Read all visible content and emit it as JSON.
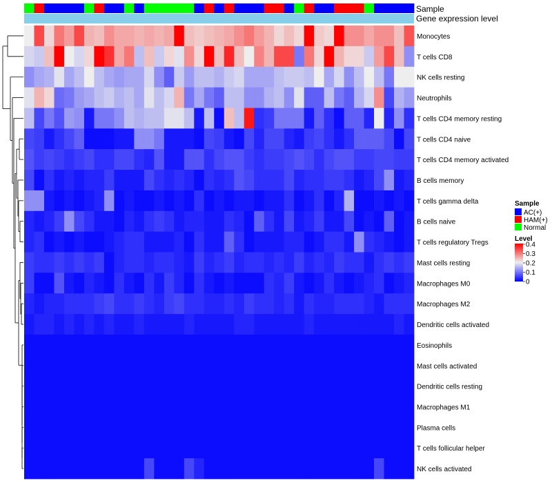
{
  "chart_data": {
    "type": "heatmap",
    "title": "",
    "annotation_tracks": [
      {
        "name": "Sample",
        "label": "Sample"
      },
      {
        "name": "Gene expression level",
        "label": "Gene expression level"
      }
    ],
    "sample_groups": [
      "Normal",
      "HAM(+)",
      "AC(+)",
      "AC(+)",
      "AC(+)",
      "AC(+)",
      "Normal",
      "HAM(+)",
      "AC(+)",
      "AC(+)",
      "Normal",
      "AC(+)",
      "Normal",
      "Normal",
      "Normal",
      "Normal",
      "Normal",
      "AC(+)",
      "HAM(+)",
      "AC(+)",
      "HAM(+)",
      "AC(+)",
      "AC(+)",
      "AC(+)",
      "HAM(+)",
      "HAM(+)",
      "AC(+)",
      "Normal",
      "HAM(+)",
      "AC(+)",
      "AC(+)",
      "HAM(+)",
      "HAM(+)",
      "HAM(+)",
      "Normal",
      "AC(+)",
      "AC(+)",
      "AC(+)",
      "AC(+)"
    ],
    "gene_expression_level": "single continuous band (light blue)",
    "rows": [
      "Monocytes",
      "T cells CD8",
      "NK cells resting",
      "Neutrophils",
      "T cells CD4 memory resting",
      "T cells CD4 naive",
      "T cells CD4 memory activated",
      "B cells memory",
      "T cells gamma delta",
      "B cells naive",
      "T cells regulatory  Tregs",
      "Mast cells resting",
      "Macrophages M0",
      "Macrophages M2",
      "Dendritic cells activated",
      "Eosinophils",
      "Mast cells activated",
      "Dendritic cells resting",
      "Macrophages M1",
      "Plasma cells",
      "T cells follicular helper",
      "NK cells activated"
    ],
    "values": [
      [
        0.2,
        0.34,
        0.22,
        0.3,
        0.27,
        0.34,
        0.25,
        0.24,
        0.28,
        0.26,
        0.26,
        0.25,
        0.26,
        0.25,
        0.26,
        0.4,
        0.24,
        0.23,
        0.24,
        0.25,
        0.26,
        0.28,
        0.3,
        0.27,
        0.25,
        0.22,
        0.24,
        0.22,
        0.4,
        0.23,
        0.22,
        0.4,
        0.28,
        0.28,
        0.26,
        0.28,
        0.28,
        0.24,
        0.33
      ],
      [
        0.18,
        0.17,
        0.24,
        0.4,
        0.2,
        0.18,
        0.22,
        0.4,
        0.36,
        0.26,
        0.3,
        0.16,
        0.24,
        0.17,
        0.22,
        0.19,
        0.28,
        0.22,
        0.4,
        0.24,
        0.37,
        0.24,
        0.2,
        0.29,
        0.25,
        0.34,
        0.34,
        0.1,
        0.3,
        0.22,
        0.4,
        0.25,
        0.22,
        0.22,
        0.17,
        0.27,
        0.34,
        0.24,
        0.12
      ],
      [
        0.12,
        0.14,
        0.15,
        0.19,
        0.14,
        0.16,
        0.2,
        0.16,
        0.14,
        0.13,
        0.14,
        0.14,
        0.18,
        0.12,
        0.08,
        0.17,
        0.13,
        0.16,
        0.16,
        0.15,
        0.17,
        0.18,
        0.14,
        0.14,
        0.14,
        0.16,
        0.17,
        0.17,
        0.16,
        0.2,
        0.14,
        0.18,
        0.12,
        0.16,
        0.2,
        0.16,
        0.1,
        0.2,
        0.2
      ],
      [
        0.19,
        0.25,
        0.22,
        0.09,
        0.1,
        0.13,
        0.14,
        0.16,
        0.17,
        0.15,
        0.16,
        0.14,
        0.19,
        0.16,
        0.18,
        0.25,
        0.1,
        0.14,
        0.1,
        0.08,
        0.16,
        0.16,
        0.12,
        0.12,
        0.15,
        0.16,
        0.12,
        0.19,
        0.08,
        0.08,
        0.16,
        0.1,
        0.08,
        0.15,
        0.18,
        0.28,
        0.06,
        0.15,
        0.13
      ],
      [
        0.16,
        0.06,
        0.1,
        0.07,
        0.13,
        0.12,
        0.02,
        0.1,
        0.1,
        0.12,
        0.16,
        0.15,
        0.16,
        0.16,
        0.19,
        0.19,
        0.16,
        0.02,
        0.16,
        0.01,
        0.24,
        0.16,
        0.38,
        0.04,
        0.05,
        0.1,
        0.1,
        0.1,
        0.02,
        0.08,
        0.04,
        0.01,
        0.08,
        0.08,
        0.03,
        0.2,
        0.03,
        0.12,
        0.04
      ],
      [
        0.06,
        0.05,
        0.02,
        0.04,
        0.06,
        0.08,
        0.01,
        0.01,
        0.01,
        0.02,
        0.02,
        0.12,
        0.12,
        0.1,
        0.02,
        0.02,
        0.02,
        0.01,
        0.06,
        0.05,
        0.02,
        0.01,
        0.06,
        0.03,
        0.06,
        0.06,
        0.03,
        0.02,
        0.05,
        0.06,
        0.04,
        0.02,
        0.04,
        0.08,
        0.08,
        0.08,
        0.06,
        0.01,
        0.06
      ],
      [
        0.07,
        0.05,
        0.06,
        0.05,
        0.04,
        0.05,
        0.06,
        0.04,
        0.04,
        0.06,
        0.06,
        0.04,
        0.03,
        0.07,
        0.02,
        0.02,
        0.07,
        0.07,
        0.04,
        0.06,
        0.07,
        0.07,
        0.05,
        0.04,
        0.05,
        0.05,
        0.06,
        0.07,
        0.06,
        0.04,
        0.06,
        0.07,
        0.07,
        0.05,
        0.05,
        0.06,
        0.06,
        0.05,
        0.05
      ],
      [
        0.06,
        0.01,
        0.04,
        0.02,
        0.03,
        0.02,
        0.03,
        0.03,
        0.05,
        0.02,
        0.02,
        0.02,
        0.06,
        0.04,
        0.03,
        0.04,
        0.03,
        0.01,
        0.04,
        0.03,
        0.04,
        0.07,
        0.06,
        0.04,
        0.04,
        0.04,
        0.06,
        0.03,
        0.04,
        0.04,
        0.05,
        0.05,
        0.04,
        0.02,
        0.03,
        0.06,
        0.12,
        0.02,
        0.03
      ],
      [
        0.12,
        0.12,
        0.02,
        0.01,
        0.02,
        0.01,
        0.02,
        0.03,
        0.12,
        0.01,
        0.02,
        0.01,
        0.01,
        0.02,
        0.01,
        0.02,
        0.01,
        0.04,
        0.01,
        0.02,
        0.01,
        0.02,
        0.02,
        0.01,
        0.02,
        0.02,
        0.04,
        0.01,
        0.02,
        0.04,
        0.01,
        0.03,
        0.15,
        0.01,
        0.01,
        0.02,
        0.01,
        0.02,
        0.01
      ],
      [
        0.03,
        0.02,
        0.03,
        0.05,
        0.12,
        0.06,
        0.04,
        0.02,
        0.02,
        0.01,
        0.03,
        0.02,
        0.04,
        0.05,
        0.04,
        0.02,
        0.03,
        0.03,
        0.02,
        0.02,
        0.04,
        0.03,
        0.01,
        0.08,
        0.04,
        0.02,
        0.06,
        0.02,
        0.03,
        0.05,
        0.02,
        0.02,
        0.06,
        0.01,
        0.02,
        0.01,
        0.08,
        0.01,
        0.02
      ],
      [
        0.03,
        0.04,
        0.01,
        0.02,
        0.01,
        0.02,
        0.01,
        0.01,
        0.02,
        0.03,
        0.04,
        0.04,
        0.02,
        0.02,
        0.02,
        0.03,
        0.01,
        0.04,
        0.02,
        0.02,
        0.08,
        0.04,
        0.01,
        0.02,
        0.02,
        0.02,
        0.03,
        0.03,
        0.01,
        0.02,
        0.04,
        0.04,
        0.02,
        0.12,
        0.04,
        0.03,
        0.02,
        0.01,
        0.02
      ],
      [
        0.05,
        0.04,
        0.04,
        0.05,
        0.04,
        0.05,
        0.04,
        0.05,
        0.01,
        0.03,
        0.04,
        0.04,
        0.03,
        0.04,
        0.04,
        0.03,
        0.02,
        0.05,
        0.03,
        0.04,
        0.05,
        0.03,
        0.04,
        0.04,
        0.03,
        0.04,
        0.03,
        0.05,
        0.03,
        0.04,
        0.03,
        0.05,
        0.04,
        0.04,
        0.02,
        0.04,
        0.05,
        0.04,
        0.05
      ],
      [
        0.05,
        0.01,
        0.01,
        0.07,
        0.02,
        0.01,
        0.03,
        0.02,
        0.01,
        0.04,
        0.02,
        0.01,
        0.04,
        0.02,
        0.05,
        0.03,
        0.01,
        0.04,
        0.02,
        0.01,
        0.02,
        0.01,
        0.01,
        0.01,
        0.04,
        0.03,
        0.05,
        0.02,
        0.01,
        0.02,
        0.04,
        0.02,
        0.01,
        0.02,
        0.03,
        0.04,
        0.01,
        0.02,
        0.03
      ],
      [
        0.03,
        0.02,
        0.03,
        0.03,
        0.04,
        0.04,
        0.04,
        0.05,
        0.06,
        0.04,
        0.04,
        0.05,
        0.04,
        0.03,
        0.05,
        0.06,
        0.04,
        0.04,
        0.03,
        0.03,
        0.04,
        0.03,
        0.05,
        0.04,
        0.04,
        0.03,
        0.04,
        0.02,
        0.04,
        0.03,
        0.03,
        0.04,
        0.04,
        0.04,
        0.03,
        0.02,
        0.04,
        0.04,
        0.04
      ],
      [
        0.02,
        0.03,
        0.03,
        0.02,
        0.03,
        0.02,
        0.03,
        0.02,
        0.03,
        0.02,
        0.02,
        0.03,
        0.02,
        0.02,
        0.02,
        0.02,
        0.03,
        0.02,
        0.02,
        0.02,
        0.02,
        0.03,
        0.03,
        0.02,
        0.02,
        0.02,
        0.02,
        0.02,
        0.03,
        0.02,
        0.02,
        0.02,
        0.02,
        0.02,
        0.02,
        0.02,
        0.02,
        0.03,
        0.02
      ],
      [
        0.01,
        0.01,
        0.01,
        0.01,
        0.01,
        0.01,
        0.01,
        0.01,
        0.01,
        0.01,
        0.01,
        0.01,
        0.01,
        0.01,
        0.01,
        0.01,
        0.01,
        0.01,
        0.01,
        0.01,
        0.01,
        0.01,
        0.01,
        0.01,
        0.01,
        0.01,
        0.01,
        0.01,
        0.01,
        0.01,
        0.01,
        0.01,
        0.01,
        0.01,
        0.01,
        0.01,
        0.01,
        0.01,
        0.01
      ],
      [
        0.01,
        0.01,
        0.01,
        0.01,
        0.01,
        0.01,
        0.01,
        0.01,
        0.01,
        0.01,
        0.01,
        0.01,
        0.01,
        0.01,
        0.01,
        0.01,
        0.01,
        0.01,
        0.01,
        0.01,
        0.01,
        0.01,
        0.01,
        0.01,
        0.01,
        0.01,
        0.01,
        0.01,
        0.01,
        0.01,
        0.01,
        0.01,
        0.01,
        0.01,
        0.01,
        0.01,
        0.01,
        0.01,
        0.01
      ],
      [
        0.01,
        0.01,
        0.01,
        0.01,
        0.01,
        0.01,
        0.01,
        0.01,
        0.01,
        0.01,
        0.01,
        0.01,
        0.01,
        0.01,
        0.01,
        0.01,
        0.01,
        0.01,
        0.01,
        0.01,
        0.01,
        0.01,
        0.01,
        0.01,
        0.01,
        0.01,
        0.01,
        0.01,
        0.01,
        0.01,
        0.01,
        0.01,
        0.01,
        0.01,
        0.01,
        0.01,
        0.01,
        0.01,
        0.01
      ],
      [
        0.01,
        0.01,
        0.01,
        0.01,
        0.01,
        0.01,
        0.01,
        0.01,
        0.01,
        0.01,
        0.01,
        0.01,
        0.01,
        0.01,
        0.01,
        0.01,
        0.01,
        0.01,
        0.01,
        0.01,
        0.01,
        0.01,
        0.01,
        0.01,
        0.01,
        0.01,
        0.01,
        0.01,
        0.01,
        0.01,
        0.01,
        0.01,
        0.01,
        0.01,
        0.01,
        0.01,
        0.01,
        0.01,
        0.01
      ],
      [
        0.01,
        0.01,
        0.01,
        0.01,
        0.01,
        0.01,
        0.01,
        0.01,
        0.01,
        0.01,
        0.01,
        0.01,
        0.01,
        0.01,
        0.01,
        0.01,
        0.01,
        0.01,
        0.01,
        0.01,
        0.01,
        0.01,
        0.01,
        0.01,
        0.01,
        0.01,
        0.01,
        0.01,
        0.01,
        0.01,
        0.01,
        0.01,
        0.01,
        0.01,
        0.01,
        0.01,
        0.01,
        0.01,
        0.01
      ],
      [
        0.01,
        0.01,
        0.01,
        0.01,
        0.01,
        0.01,
        0.01,
        0.01,
        0.01,
        0.01,
        0.01,
        0.01,
        0.01,
        0.01,
        0.01,
        0.01,
        0.01,
        0.01,
        0.01,
        0.01,
        0.01,
        0.01,
        0.01,
        0.01,
        0.01,
        0.01,
        0.01,
        0.01,
        0.01,
        0.01,
        0.01,
        0.01,
        0.01,
        0.01,
        0.01,
        0.01,
        0.01,
        0.01,
        0.01
      ],
      [
        0.01,
        0.01,
        0.01,
        0.01,
        0.01,
        0.01,
        0.01,
        0.01,
        0.01,
        0.01,
        0.01,
        0.01,
        0.06,
        0.01,
        0.01,
        0.01,
        0.06,
        0.03,
        0.01,
        0.01,
        0.01,
        0.01,
        0.01,
        0.01,
        0.01,
        0.01,
        0.01,
        0.01,
        0.01,
        0.01,
        0.01,
        0.01,
        0.01,
        0.01,
        0.01,
        0.06,
        0.01,
        0.01,
        0.01
      ]
    ],
    "color_scale": {
      "min": 0,
      "max": 0.4,
      "low_color": "#0000ff",
      "mid_color": "#eeeeee",
      "high_color": "#ff0000",
      "mid_value": 0.2
    },
    "legend": {
      "sample_title": "Sample",
      "sample_entries": [
        {
          "label": "AC(+)",
          "color": "#0000ff"
        },
        {
          "label": "HAM(+)",
          "color": "#ff0000"
        },
        {
          "label": "Normal",
          "color": "#00ff00"
        }
      ],
      "level_title": "Level",
      "level_ticks": [
        "0.4",
        "0.3",
        "0.2",
        "0.1",
        "0"
      ],
      "placement": "right"
    },
    "annotation_colors": {
      "AC(+)": "#0000ff",
      "HAM(+)": "#ff0000",
      "Normal": "#00ff00",
      "gene_band": "#87ceeb"
    }
  }
}
